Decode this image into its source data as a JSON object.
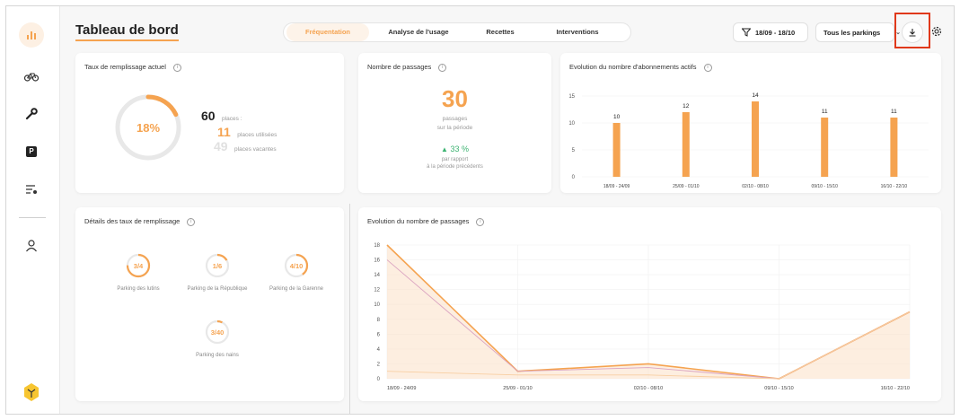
{
  "sidebar": {
    "items": [
      {
        "name": "dashboard-icon"
      },
      {
        "name": "bike-icon"
      },
      {
        "name": "wrench-icon"
      },
      {
        "name": "parking-icon",
        "label": "P"
      },
      {
        "name": "settings-list-icon"
      },
      {
        "name": "user-icon"
      }
    ]
  },
  "header": {
    "title": "Tableau de bord",
    "tabs": [
      "Fréquentation",
      "Analyse de l'usage",
      "Recettes",
      "Interventions"
    ],
    "active_tab": 0,
    "date_filter": "18/09 - 18/10",
    "parking_select": "Tous les parkings"
  },
  "taux_card": {
    "title": "Taux de remplissage actuel",
    "info": "i",
    "percent_text": "18%",
    "percent_value": 0.18,
    "total_value": "60",
    "total_label": "places :",
    "used_value": "11",
    "used_label": "places utilisées",
    "vacant_value": "49",
    "vacant_label": "places vacantes"
  },
  "passages_card": {
    "title": "Nombre de passages",
    "info": "i",
    "count": "30",
    "subtitle_1": "passages",
    "subtitle_2": "sur la période",
    "delta": "33 %",
    "delta_label_1": "par rapport",
    "delta_label_2": "à la période précédents"
  },
  "details_card": {
    "title": "Détails des taux de remplissage",
    "info": "i",
    "gauges": [
      {
        "value": "3/4",
        "ratio": 0.75,
        "label": "Parking des lutins"
      },
      {
        "value": "1/6",
        "ratio": 0.1667,
        "label": "Parking de la République"
      },
      {
        "value": "4/10",
        "ratio": 0.4,
        "label": "Parking de la Garenne"
      },
      {
        "value": "3/40",
        "ratio": 0.075,
        "label": "Parking des nains"
      }
    ]
  },
  "colors": {
    "accent": "#f5a350",
    "accent_light": "#fce3cc",
    "muted_line": "#f8cfa3",
    "positive": "#3cb371"
  },
  "chart_data": [
    {
      "type": "bar",
      "title": "Evolution du nombre d'abonnements actifs",
      "categories": [
        "18/09 - 24/09",
        "25/09 - 01/10",
        "02/10 - 08/10",
        "09/10 - 15/10",
        "16/10 - 22/10"
      ],
      "values": [
        10,
        12,
        14,
        11,
        11
      ],
      "yticks": [
        0,
        5,
        10,
        15
      ],
      "ylim": [
        0,
        15
      ]
    },
    {
      "type": "area",
      "title": "Evolution du nombre de passages",
      "categories": [
        "18/09 - 24/09",
        "25/09 - 01/10",
        "02/10 - 08/10",
        "09/10 - 15/10",
        "16/10 - 22/10"
      ],
      "series": [
        {
          "values": [
            18,
            1,
            2,
            0,
            9
          ]
        },
        {
          "values": [
            16,
            1,
            1.5,
            0,
            9
          ]
        },
        {
          "values": [
            1,
            0.5,
            0.5,
            0,
            9
          ]
        }
      ],
      "yticks": [
        0,
        2,
        4,
        6,
        8,
        10,
        12,
        14,
        16,
        18
      ],
      "ylim": [
        0,
        18
      ]
    }
  ]
}
